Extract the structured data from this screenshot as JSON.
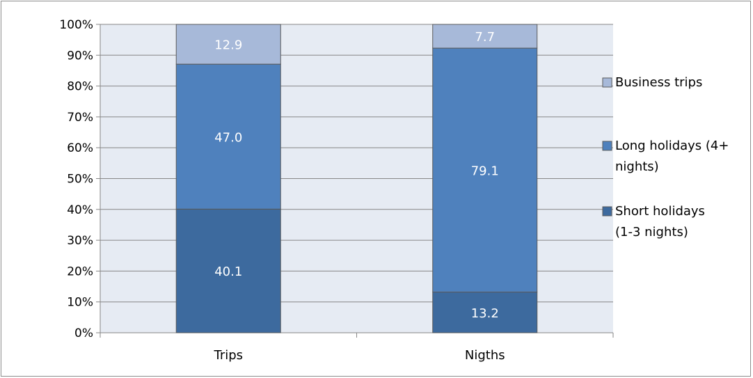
{
  "chart_data": {
    "type": "bar",
    "stacked": true,
    "percent_stacked": true,
    "categories": [
      "Trips",
      "Nigths"
    ],
    "series": [
      {
        "name": "Short holidays (1-3 nights)",
        "color": "#3d6a9e",
        "values": [
          40.1,
          13.2
        ]
      },
      {
        "name": "Long holidays (4+ nights)",
        "color": "#4f81bd",
        "values": [
          47.0,
          79.1
        ]
      },
      {
        "name": "Business trips",
        "color": "#a7b9d9",
        "values": [
          12.9,
          7.7
        ]
      }
    ],
    "y_ticks": [
      "0%",
      "10%",
      "20%",
      "30%",
      "40%",
      "50%",
      "60%",
      "70%",
      "80%",
      "90%",
      "100%"
    ],
    "ylim": [
      0,
      100
    ],
    "grid": true,
    "legend": {
      "position": "right",
      "entries": [
        {
          "series_index": 2,
          "lines": [
            "Business trips"
          ]
        },
        {
          "series_index": 1,
          "lines": [
            "Long holidays (4+",
            "nights)"
          ]
        },
        {
          "series_index": 0,
          "lines": [
            "Short holidays",
            "(1-3 nights)"
          ]
        }
      ]
    },
    "plot_background": "#e6ebf3",
    "gridline_color": "#868686",
    "bar_label_color": "#ffffff"
  }
}
